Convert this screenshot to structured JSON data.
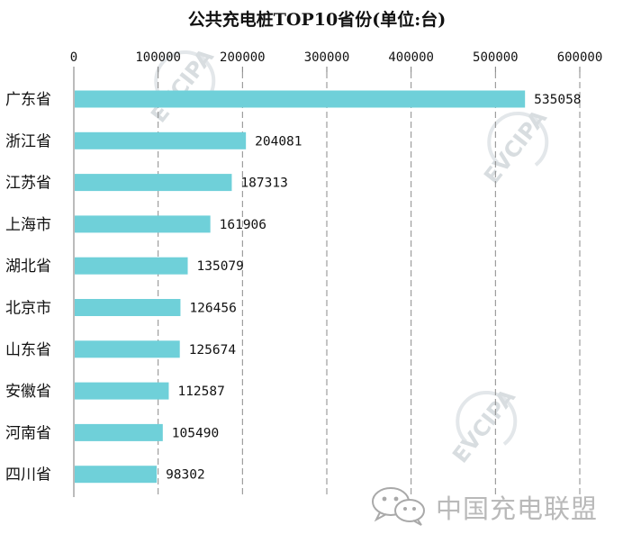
{
  "chart_data": {
    "type": "bar",
    "orientation": "horizontal",
    "title": "公共充电桩TOP10省份(单位:台)",
    "categories": [
      "广东省",
      "浙江省",
      "江苏省",
      "上海市",
      "湖北省",
      "北京市",
      "山东省",
      "安徽省",
      "河南省",
      "四川省"
    ],
    "values": [
      535058,
      204081,
      187313,
      161906,
      135079,
      126456,
      125674,
      112587,
      105490,
      98302
    ],
    "xlim": [
      0,
      600000
    ],
    "xticks": [
      0,
      100000,
      200000,
      300000,
      400000,
      500000,
      600000
    ],
    "xlabel": "",
    "ylabel": "",
    "grid": "vertical-dashed",
    "axis_position": "top",
    "bar_color": "#6fd0d9"
  },
  "watermark": {
    "text": "EVCIPA",
    "brand": "中国充电联盟"
  }
}
